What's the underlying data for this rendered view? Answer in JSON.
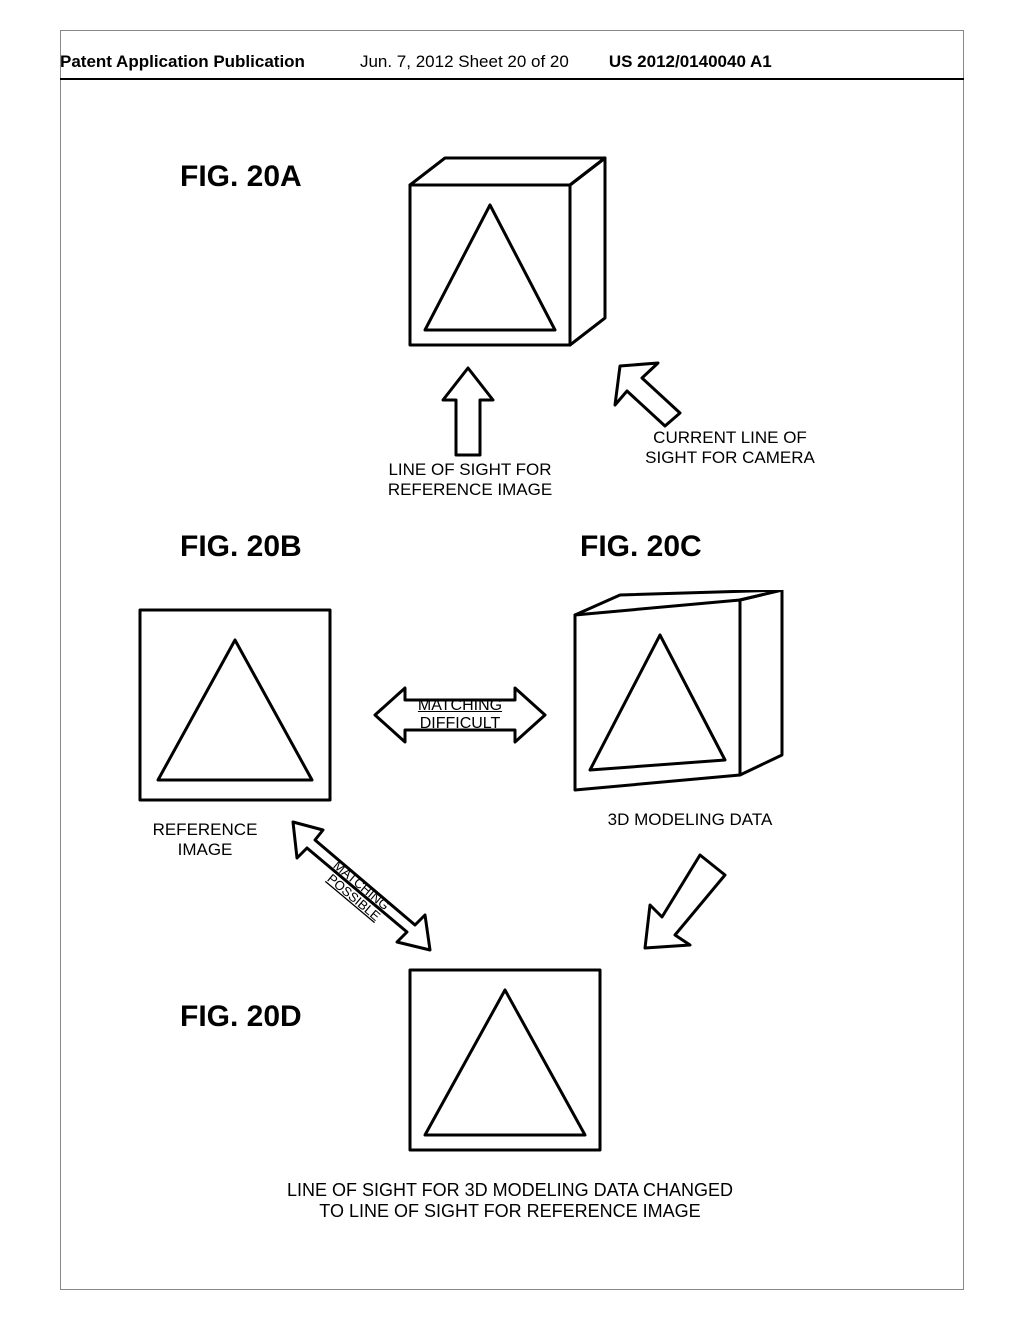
{
  "header": {
    "left": "Patent Application Publication",
    "mid": "Jun. 7, 2012   Sheet 20 of 20",
    "right": "US 2012/0140040 A1"
  },
  "figs": {
    "a": "FIG. 20A",
    "b": "FIG. 20B",
    "c": "FIG. 20C",
    "d": "FIG. 20D"
  },
  "labels": {
    "line_of_sight_ref": "LINE OF SIGHT FOR\nREFERENCE IMAGE",
    "current_line_of_sight": "CURRENT LINE OF\nSIGHT FOR CAMERA",
    "matching_difficult": "MATCHING\nDIFFICULT",
    "matching_possible": "MATCHING\nPOSSIBLE",
    "reference_image": "REFERENCE\nIMAGE",
    "modeling_data": "3D MODELING DATA",
    "bottom": "LINE OF SIGHT FOR 3D MODELING DATA CHANGED\nTO LINE OF SIGHT FOR REFERENCE IMAGE"
  },
  "style": {
    "stroke": "#000000",
    "stroke_width": 3,
    "bg": "#ffffff",
    "fig_fontsize": 30,
    "label_fontsize": 17
  }
}
